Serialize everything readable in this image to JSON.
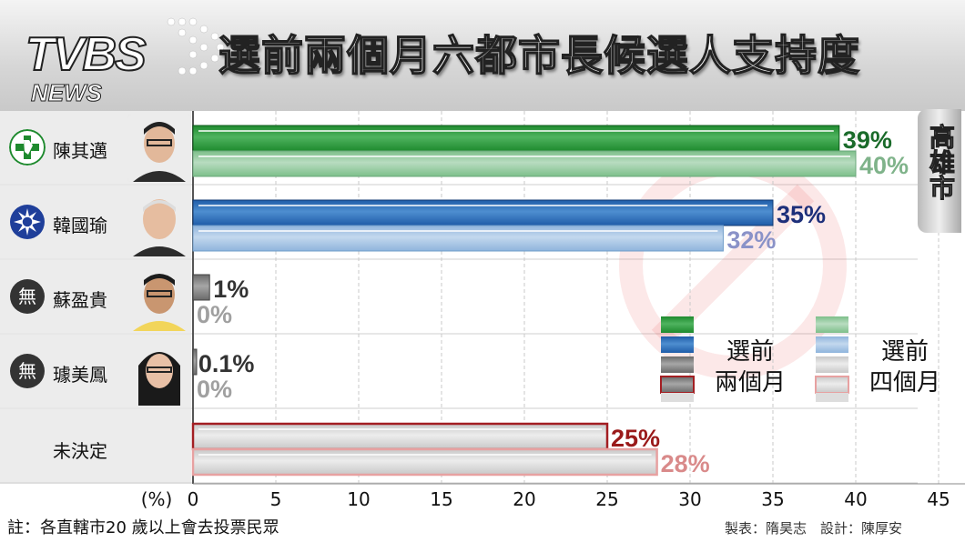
{
  "header": {
    "logo_tvbs": "TVBS",
    "logo_news": "NEWS",
    "title": "選前兩個月六都市長候選人支持度"
  },
  "city_label": "高雄市",
  "candidates": [
    {
      "name": "陳其邁",
      "party_badge": "dpp-flag-icon",
      "photo": "portrait-photo"
    },
    {
      "name": "韓國瑜",
      "party_badge": "kmt-sun-icon",
      "photo": "portrait-photo"
    },
    {
      "name": "蘇盈貴",
      "party_badge": "independent-icon",
      "badge_text": "無",
      "photo": "portrait-photo"
    },
    {
      "name": "璩美鳳",
      "party_badge": "independent-icon",
      "badge_text": "無",
      "photo": "portrait-photo"
    },
    {
      "name": "未決定"
    }
  ],
  "colors": {
    "green_dark": "#1e8a2e",
    "green_light": "#7dbf8a",
    "blue_dark": "#1f5ca8",
    "blue_light": "#8fb4dc",
    "gray_dark": "#7a7a7a",
    "gray_light": "#d2d2d2",
    "red_border": "#a31e22",
    "red_border_light": "#e7a1a1",
    "label_green_dark": "#1a6b2a",
    "label_green_light": "#7fb38a",
    "label_blue_dark": "#1d2f7a",
    "label_blue_light": "#8a92c8",
    "label_gray_dark": "#333333",
    "label_gray_light": "#a0a0a0",
    "label_red_dark": "#9a1a1a",
    "label_red_light": "#d98a8a"
  },
  "chart_data": {
    "type": "bar",
    "orientation": "horizontal",
    "categories": [
      "陳其邁",
      "韓國瑜",
      "蘇盈貴",
      "璩美鳳",
      "未決定"
    ],
    "series": [
      {
        "name": "選前兩個月",
        "values": [
          39,
          35,
          1,
          0.1,
          25
        ],
        "labels": [
          "39%",
          "35%",
          "1%",
          "0.1%",
          "25%"
        ]
      },
      {
        "name": "選前四個月",
        "values": [
          40,
          32,
          0,
          0,
          28
        ],
        "labels": [
          "40%",
          "32%",
          "0%",
          "0%",
          "28%"
        ]
      }
    ],
    "x_unit": "(%)",
    "xlim": [
      0,
      45
    ],
    "x_ticks": [
      "0",
      "5",
      "10",
      "15",
      "20",
      "25",
      "30",
      "35",
      "40",
      "45"
    ],
    "grid": true,
    "legend": [
      {
        "line1": "選前",
        "line2": "兩個月"
      },
      {
        "line1": "選前",
        "line2": "四個月"
      }
    ]
  },
  "footnote": "註：各直轄市20 歲以上會去投票民眾",
  "credits": "製表：隋昊志　設計：陳厚安"
}
